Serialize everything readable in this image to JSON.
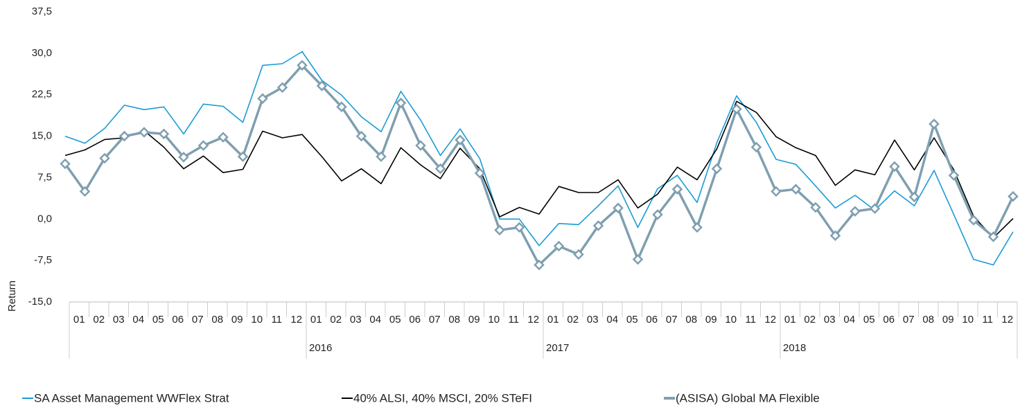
{
  "chart_data": {
    "type": "line",
    "y_axis_label": "Return",
    "categories": [
      null,
      "01",
      "02",
      "03",
      "04",
      "05",
      "06",
      "07",
      "08",
      "09",
      "10",
      "11",
      "12",
      "01",
      "02",
      "03",
      "04",
      "05",
      "06",
      "07",
      "08",
      "09",
      "10",
      "11",
      "12",
      "01",
      "02",
      "03",
      "04",
      "05",
      "06",
      "07",
      "08",
      "09",
      "10",
      "11",
      "12",
      "01",
      "02",
      "03",
      "04",
      "05",
      "06",
      "07",
      "08",
      "09",
      "10",
      "11",
      "12"
    ],
    "year_labels": [
      null,
      "2016",
      "2017",
      "2018"
    ],
    "ylim": [
      -15,
      37.5
    ],
    "yticks": [
      {
        "value": -15,
        "label": "-15,0"
      },
      {
        "value": -7.5,
        "label": "-7,5"
      },
      {
        "value": 0,
        "label": "0,0"
      },
      {
        "value": 7.5,
        "label": "7,5"
      },
      {
        "value": 15,
        "label": "15,0"
      },
      {
        "value": 22.5,
        "label": "22,5"
      },
      {
        "value": 30,
        "label": "30,0"
      },
      {
        "value": 37.5,
        "label": "37,5"
      }
    ],
    "grid": false,
    "legend": "bottom",
    "series": [
      {
        "name": "SA Asset Management WWFlex Strat",
        "color": "#1a9ad6",
        "values": [
          15.0,
          13.7,
          16.4,
          20.6,
          19.8,
          20.3,
          15.4,
          20.8,
          20.4,
          17.5,
          27.8,
          28.1,
          30.3,
          25.1,
          22.4,
          18.5,
          15.8,
          23.1,
          17.9,
          11.5,
          16.3,
          10.9,
          0.0,
          0.0,
          -4.8,
          -0.8,
          -1.0,
          2.4,
          6.0,
          -1.5,
          5.5,
          7.9,
          3.0,
          13.8,
          22.3,
          17.5,
          10.8,
          9.9,
          6.0,
          2.0,
          4.3,
          1.6,
          5.1,
          2.4,
          8.8,
          0.8,
          -7.3,
          -8.3,
          -2.3
        ]
      },
      {
        "name": "40% ALSI, 40% MSCI, 20% STeFI",
        "color": "#000000",
        "values": [
          11.5,
          12.5,
          14.4,
          14.7,
          16.0,
          13.0,
          9.1,
          11.4,
          8.4,
          9.0,
          15.9,
          14.7,
          15.3,
          11.3,
          6.9,
          9.1,
          6.4,
          12.9,
          9.8,
          7.3,
          12.8,
          9.1,
          0.4,
          2.1,
          0.9,
          5.9,
          4.8,
          4.8,
          7.1,
          2.0,
          4.5,
          9.4,
          7.1,
          12.7,
          21.3,
          19.3,
          14.9,
          12.9,
          11.5,
          6.1,
          8.9,
          8.0,
          14.3,
          8.9,
          14.7,
          8.9,
          0.5,
          -3.4,
          0.1
        ]
      },
      {
        "name": "(ASISA) Global MA Flexible",
        "color": "#7f9fb0",
        "markers": "diamond",
        "values": [
          10.0,
          5.0,
          11.0,
          15.0,
          15.7,
          15.4,
          11.2,
          13.3,
          14.8,
          11.3,
          21.8,
          23.8,
          27.8,
          24.1,
          20.3,
          15.0,
          11.3,
          21.0,
          13.3,
          9.1,
          14.3,
          8.3,
          -2.0,
          -1.5,
          -8.3,
          -4.9,
          -6.4,
          -1.2,
          2.0,
          -7.3,
          0.8,
          5.4,
          -1.5,
          9.1,
          19.9,
          13.0,
          5.0,
          5.4,
          2.1,
          -3.0,
          1.4,
          1.9,
          9.5,
          4.0,
          17.2,
          7.9,
          -0.2,
          -3.2,
          4.1
        ]
      }
    ]
  }
}
